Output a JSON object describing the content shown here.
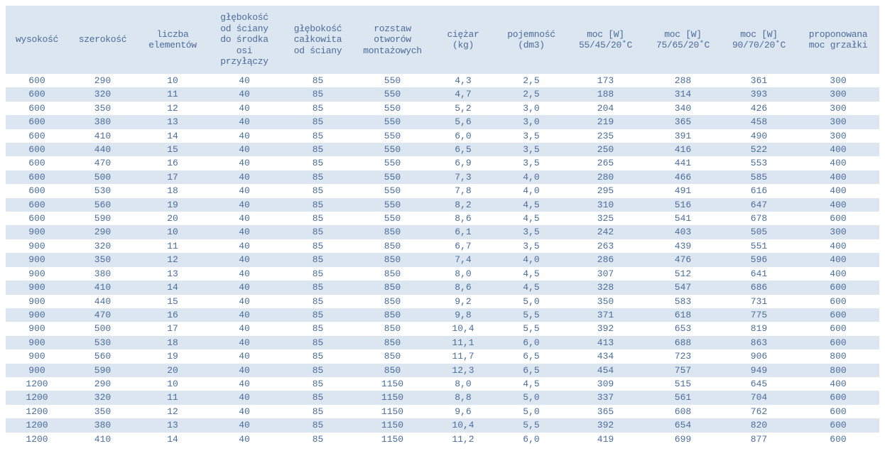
{
  "table": {
    "header": [
      "wysokość",
      "szerokość",
      "liczba\nelementów",
      "głębokość\nod ściany\ndo środka\nosi\nprzyłączy",
      "głębokość\ncałkowita\nod ściany",
      "rozstaw\notworów\nmontażowych",
      "ciężar\n(kg)",
      "pojemność\n(dm3)",
      "moc [W]\n55/45/20˚C",
      "moc [W]\n75/65/20˚C",
      "moc [W]\n90/70/20˚C",
      "proponowana\nmoc grzałki"
    ],
    "rows": [
      [
        "600",
        "290",
        "10",
        "40",
        "85",
        "550",
        "4,3",
        "2,5",
        "173",
        "288",
        "361",
        "300"
      ],
      [
        "600",
        "320",
        "11",
        "40",
        "85",
        "550",
        "4,7",
        "2,5",
        "188",
        "314",
        "393",
        "300"
      ],
      [
        "600",
        "350",
        "12",
        "40",
        "85",
        "550",
        "5,2",
        "3,0",
        "204",
        "340",
        "426",
        "300"
      ],
      [
        "600",
        "380",
        "13",
        "40",
        "85",
        "550",
        "5,6",
        "3,0",
        "219",
        "365",
        "458",
        "300"
      ],
      [
        "600",
        "410",
        "14",
        "40",
        "85",
        "550",
        "6,0",
        "3,5",
        "235",
        "391",
        "490",
        "300"
      ],
      [
        "600",
        "440",
        "15",
        "40",
        "85",
        "550",
        "6,5",
        "3,5",
        "250",
        "416",
        "522",
        "400"
      ],
      [
        "600",
        "470",
        "16",
        "40",
        "85",
        "550",
        "6,9",
        "3,5",
        "265",
        "441",
        "553",
        "400"
      ],
      [
        "600",
        "500",
        "17",
        "40",
        "85",
        "550",
        "7,3",
        "4,0",
        "280",
        "466",
        "585",
        "400"
      ],
      [
        "600",
        "530",
        "18",
        "40",
        "85",
        "550",
        "7,8",
        "4,0",
        "295",
        "491",
        "616",
        "400"
      ],
      [
        "600",
        "560",
        "19",
        "40",
        "85",
        "550",
        "8,2",
        "4,5",
        "310",
        "516",
        "647",
        "400"
      ],
      [
        "600",
        "590",
        "20",
        "40",
        "85",
        "550",
        "8,6",
        "4,5",
        "325",
        "541",
        "678",
        "600"
      ],
      [
        "900",
        "290",
        "10",
        "40",
        "85",
        "850",
        "6,1",
        "3,5",
        "242",
        "403",
        "505",
        "300"
      ],
      [
        "900",
        "320",
        "11",
        "40",
        "85",
        "850",
        "6,7",
        "3,5",
        "263",
        "439",
        "551",
        "400"
      ],
      [
        "900",
        "350",
        "12",
        "40",
        "85",
        "850",
        "7,4",
        "4,0",
        "286",
        "476",
        "596",
        "400"
      ],
      [
        "900",
        "380",
        "13",
        "40",
        "85",
        "850",
        "8,0",
        "4,5",
        "307",
        "512",
        "641",
        "400"
      ],
      [
        "900",
        "410",
        "14",
        "40",
        "85",
        "850",
        "8,6",
        "4,5",
        "328",
        "547",
        "686",
        "600"
      ],
      [
        "900",
        "440",
        "15",
        "40",
        "85",
        "850",
        "9,2",
        "5,0",
        "350",
        "583",
        "731",
        "600"
      ],
      [
        "900",
        "470",
        "16",
        "40",
        "85",
        "850",
        "9,8",
        "5,5",
        "371",
        "618",
        "775",
        "600"
      ],
      [
        "900",
        "500",
        "17",
        "40",
        "85",
        "850",
        "10,4",
        "5,5",
        "392",
        "653",
        "819",
        "600"
      ],
      [
        "900",
        "530",
        "18",
        "40",
        "85",
        "850",
        "11,1",
        "6,0",
        "413",
        "688",
        "863",
        "600"
      ],
      [
        "900",
        "560",
        "19",
        "40",
        "85",
        "850",
        "11,7",
        "6,5",
        "434",
        "723",
        "906",
        "800"
      ],
      [
        "900",
        "590",
        "20",
        "40",
        "85",
        "850",
        "12,3",
        "6,5",
        "454",
        "757",
        "949",
        "800"
      ],
      [
        "1200",
        "290",
        "10",
        "40",
        "85",
        "1150",
        "8,0",
        "4,5",
        "309",
        "515",
        "645",
        "400"
      ],
      [
        "1200",
        "320",
        "11",
        "40",
        "85",
        "1150",
        "8,8",
        "5,0",
        "337",
        "561",
        "704",
        "600"
      ],
      [
        "1200",
        "350",
        "12",
        "40",
        "85",
        "1150",
        "9,6",
        "5,0",
        "365",
        "608",
        "762",
        "600"
      ],
      [
        "1200",
        "380",
        "13",
        "40",
        "85",
        "1150",
        "10,4",
        "5,5",
        "392",
        "654",
        "820",
        "600"
      ],
      [
        "1200",
        "410",
        "14",
        "40",
        "85",
        "1150",
        "11,2",
        "6,0",
        "419",
        "699",
        "877",
        "600"
      ]
    ]
  }
}
